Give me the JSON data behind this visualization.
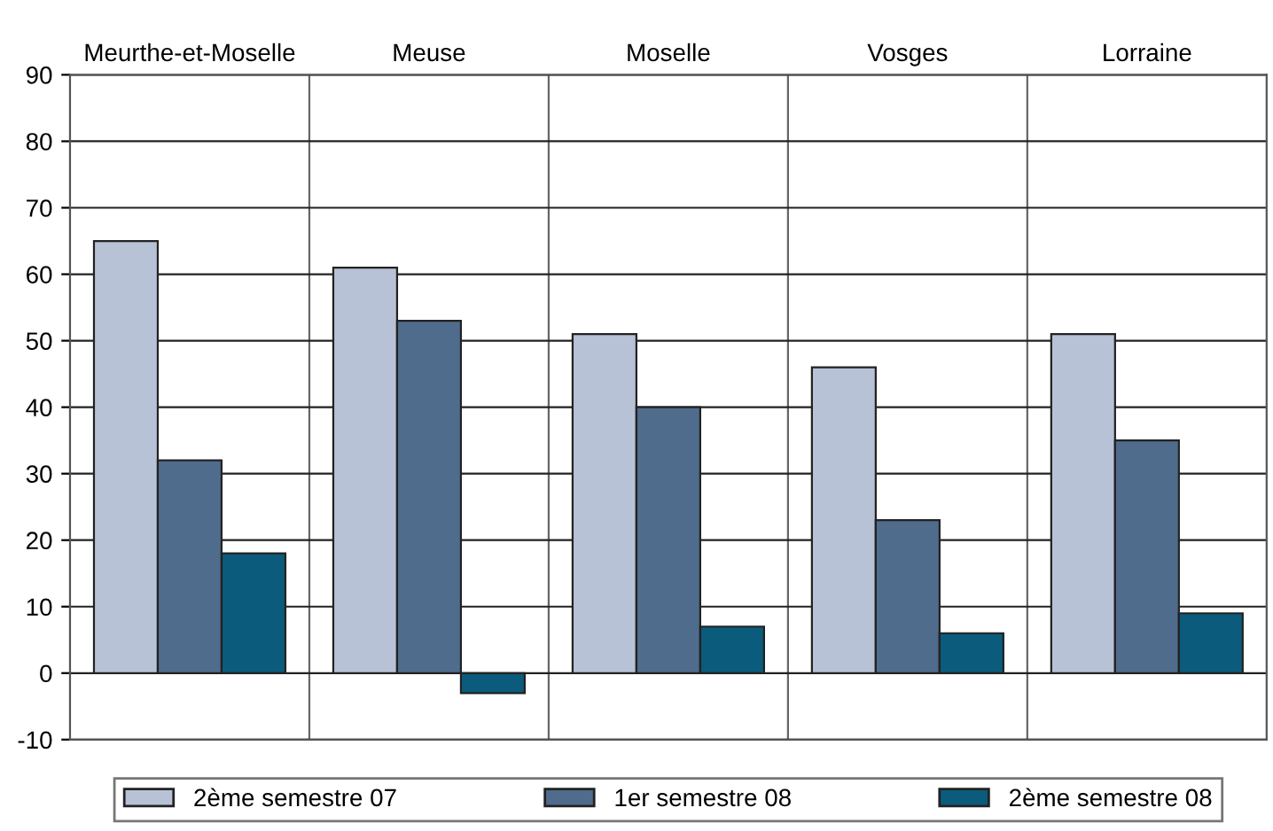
{
  "chart_data": {
    "type": "bar",
    "categories": [
      "Meurthe-et-Moselle",
      "Meuse",
      "Moselle",
      "Vosges",
      "Lorraine"
    ],
    "series": [
      {
        "name": "2ème semestre 07",
        "color": "#b8c2d6",
        "values": [
          65,
          61,
          51,
          46,
          51
        ]
      },
      {
        "name": "1er semestre 08",
        "color": "#506c8c",
        "values": [
          32,
          53,
          40,
          23,
          35
        ]
      },
      {
        "name": "2ème semestre 08",
        "color": "#0b5b7c",
        "values": [
          18,
          -3,
          7,
          6,
          9
        ]
      }
    ],
    "ylim": [
      -10,
      90
    ],
    "yticks": [
      -10,
      0,
      10,
      20,
      30,
      40,
      50,
      60,
      70,
      80,
      90
    ],
    "grid": true,
    "legend": "bottom"
  }
}
